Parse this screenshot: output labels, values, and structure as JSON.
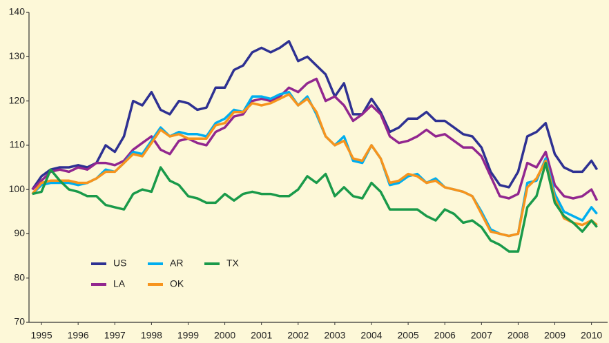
{
  "chart_data": {
    "type": "line",
    "x": [
      1995.25,
      1995.5,
      1995.75,
      1996.0,
      1996.25,
      1996.5,
      1996.75,
      1997.0,
      1997.25,
      1997.5,
      1997.75,
      1998.0,
      1998.25,
      1998.5,
      1998.75,
      1999.0,
      1999.25,
      1999.5,
      1999.75,
      2000.0,
      2000.25,
      2000.5,
      2000.75,
      2001.0,
      2001.25,
      2001.5,
      2001.75,
      2002.0,
      2002.25,
      2002.5,
      2002.75,
      2003.0,
      2003.25,
      2003.5,
      2003.75,
      2004.0,
      2004.25,
      2004.5,
      2004.75,
      2005.0,
      2005.25,
      2005.5,
      2005.75,
      2006.0,
      2006.25,
      2006.5,
      2006.75,
      2007.0,
      2007.25,
      2007.5,
      2007.75,
      2008.0,
      2008.25,
      2008.5,
      2008.75,
      2009.0,
      2009.25,
      2009.5,
      2009.75,
      2010.0,
      2010.25,
      2010.5,
      2010.65
    ],
    "series": [
      {
        "name": "US",
        "color": "#2e3192",
        "values": [
          100,
          103,
          104.5,
          105,
          105,
          105.5,
          105,
          106,
          110,
          108.5,
          112,
          120,
          119,
          122,
          118,
          117,
          120,
          119.5,
          118,
          118.5,
          123,
          123,
          127,
          128,
          131,
          132,
          131,
          132,
          133.5,
          129,
          130,
          128,
          126,
          121,
          124,
          117,
          117,
          120.5,
          117.5,
          113,
          114,
          116,
          116,
          117.5,
          115.5,
          115.5,
          114,
          112.5,
          112,
          109.5,
          104,
          101,
          100.5,
          104,
          112,
          113,
          115,
          108,
          105,
          104,
          104,
          106.5,
          104.5
        ]
      },
      {
        "name": "LA",
        "color": "#92278f",
        "values": [
          100,
          102,
          104,
          104.5,
          104,
          105,
          104.5,
          106,
          106,
          105.5,
          106.5,
          109,
          110.5,
          112,
          109,
          108,
          111,
          111.5,
          110.5,
          110,
          113,
          114,
          116.5,
          117,
          120,
          120.5,
          120,
          121,
          123,
          122,
          124,
          125,
          120,
          121,
          119,
          115.5,
          117,
          119,
          117,
          112,
          110.5,
          111,
          112,
          113.5,
          112,
          112.5,
          111,
          109.5,
          109.5,
          107.5,
          103,
          98.5,
          98,
          99,
          106,
          105,
          108.5,
          101,
          98.5,
          98,
          98.5,
          100,
          97.5
        ]
      },
      {
        "name": "AR",
        "color": "#00aeef",
        "values": [
          99,
          101,
          101.5,
          101.5,
          101.5,
          101,
          101.5,
          102.5,
          104.5,
          104,
          106,
          108.5,
          108,
          111,
          114,
          112,
          113,
          112.5,
          112.5,
          112,
          115,
          116,
          118,
          117.5,
          121,
          121,
          120.5,
          121.5,
          122,
          119,
          121,
          117,
          112,
          110,
          112,
          106.5,
          106,
          110,
          107,
          101,
          101.5,
          103,
          103.5,
          101.5,
          102.5,
          100.5,
          100,
          99.5,
          98.5,
          95,
          91,
          90,
          89.5,
          90,
          101.5,
          102,
          107,
          99,
          95,
          94,
          93,
          96,
          94.5
        ]
      },
      {
        "name": "OK",
        "color": "#f7941d",
        "values": [
          99,
          101.5,
          102,
          102,
          102,
          101.5,
          101.5,
          102.5,
          104,
          104,
          106,
          108,
          107.5,
          110.5,
          113.5,
          112,
          112.5,
          111.5,
          111.5,
          111.5,
          114.5,
          115,
          117.5,
          117.5,
          119.5,
          119,
          119.5,
          120.5,
          121.5,
          119,
          120.5,
          117.5,
          112,
          110,
          111,
          107,
          106.5,
          110,
          107,
          101.5,
          102,
          103.5,
          103,
          101.5,
          102,
          100.5,
          100,
          99.5,
          98.5,
          94.5,
          90.5,
          90,
          89.5,
          90,
          100.5,
          102.5,
          106.5,
          98,
          93.5,
          92.5,
          92,
          93,
          92
        ]
      },
      {
        "name": "TX",
        "color": "#1a9a4a",
        "values": [
          99,
          99.5,
          104.5,
          102,
          100,
          99.5,
          98.5,
          98.5,
          96.5,
          96,
          95.5,
          99,
          100,
          99.5,
          105,
          102,
          101,
          98.5,
          98,
          97,
          97,
          99,
          97.5,
          99,
          99.5,
          99,
          99,
          98.5,
          98.5,
          100,
          103,
          101.5,
          103.5,
          98.5,
          100.5,
          98.5,
          98,
          101.5,
          99.5,
          95.5,
          95.5,
          95.5,
          95.5,
          94,
          93,
          95.5,
          94.5,
          92.5,
          93,
          91.5,
          88.5,
          87.5,
          86,
          86,
          96,
          98.5,
          106,
          97,
          94,
          92.5,
          90.5,
          93,
          91.5
        ]
      }
    ],
    "xlim": [
      1995.16,
      2010.94
    ],
    "xticks": [
      {
        "value": 1995.5,
        "label": "1995"
      },
      {
        "value": 1996.5,
        "label": "1996"
      },
      {
        "value": 1997.5,
        "label": "1997"
      },
      {
        "value": 1998.5,
        "label": "1998"
      },
      {
        "value": 1999.5,
        "label": "1999"
      },
      {
        "value": 2000.5,
        "label": "2000"
      },
      {
        "value": 2001.5,
        "label": "2001"
      },
      {
        "value": 2002.5,
        "label": "2002"
      },
      {
        "value": 2003.5,
        "label": "2003"
      },
      {
        "value": 2004.5,
        "label": "2004"
      },
      {
        "value": 2005.5,
        "label": "2005"
      },
      {
        "value": 2006.5,
        "label": "2006"
      },
      {
        "value": 2007.5,
        "label": "2007"
      },
      {
        "value": 2008.5,
        "label": "2008"
      },
      {
        "value": 2009.5,
        "label": "2009"
      },
      {
        "value": 2010.5,
        "label": "2010"
      }
    ],
    "ylim": [
      70,
      140
    ],
    "yticks": [
      70,
      80,
      90,
      100,
      110,
      120,
      130,
      140
    ],
    "legend": "lower left"
  }
}
